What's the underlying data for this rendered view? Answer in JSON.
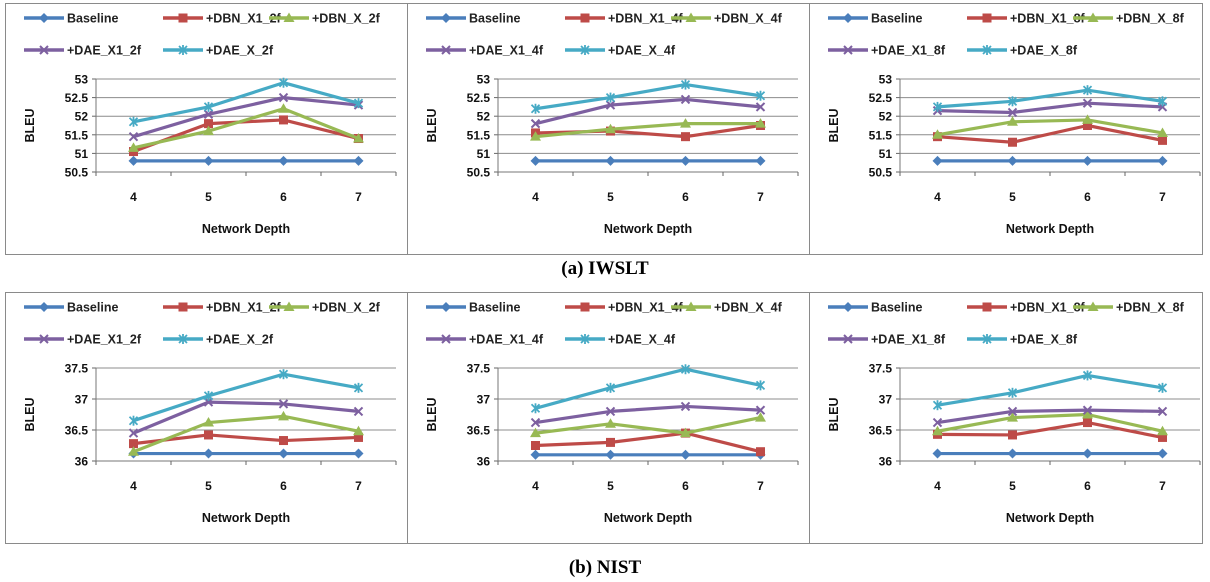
{
  "captions": [
    "(a) IWSLT",
    "(b) NIST"
  ],
  "colors": {
    "Baseline": "#4a7ebb",
    "+DBN_X1": "#be4b48",
    "+DBN_X": "#98b954",
    "+DAE_X1": "#7d60a0",
    "+DAE_X": "#46aac5"
  },
  "chart_data": [
    {
      "type": "line",
      "xlabel": "Network Depth",
      "ylabel": "BLEU",
      "categories": [
        "4",
        "5",
        "6",
        "7"
      ],
      "ylim": [
        50.5,
        53
      ],
      "yticks": [
        "50.5",
        "51",
        "51.5",
        "52",
        "52.5",
        "53"
      ],
      "series": [
        {
          "name": "Baseline",
          "values": [
            50.8,
            50.8,
            50.8,
            50.8
          ]
        },
        {
          "name": "+DBN_X1_2f",
          "values": [
            51.05,
            51.8,
            51.9,
            51.4
          ]
        },
        {
          "name": "+DBN_X_2f",
          "values": [
            51.15,
            51.6,
            52.2,
            51.4
          ]
        },
        {
          "name": "+DAE_X1_2f",
          "values": [
            51.45,
            52.05,
            52.5,
            52.3
          ]
        },
        {
          "name": "+DAE_X_2f",
          "values": [
            51.85,
            52.25,
            52.9,
            52.35
          ]
        }
      ]
    },
    {
      "type": "line",
      "xlabel": "Network Depth",
      "ylabel": "BLEU",
      "categories": [
        "4",
        "5",
        "6",
        "7"
      ],
      "ylim": [
        50.5,
        53
      ],
      "yticks": [
        "50.5",
        "51",
        "51.5",
        "52",
        "52.5",
        "53"
      ],
      "series": [
        {
          "name": "Baseline",
          "values": [
            50.8,
            50.8,
            50.8,
            50.8
          ]
        },
        {
          "name": "+DBN_X1_4f",
          "values": [
            51.55,
            51.6,
            51.45,
            51.75
          ]
        },
        {
          "name": "+DBN_X_4f",
          "values": [
            51.45,
            51.65,
            51.8,
            51.8
          ]
        },
        {
          "name": "+DAE_X1_4f",
          "values": [
            51.8,
            52.3,
            52.45,
            52.25
          ]
        },
        {
          "name": "+DAE_X_4f",
          "values": [
            52.2,
            52.5,
            52.85,
            52.55
          ]
        }
      ]
    },
    {
      "type": "line",
      "xlabel": "Network Depth",
      "ylabel": "BLEU",
      "categories": [
        "4",
        "5",
        "6",
        "7"
      ],
      "ylim": [
        50.5,
        53
      ],
      "yticks": [
        "50.5",
        "51",
        "51.5",
        "52",
        "52.5",
        "53"
      ],
      "series": [
        {
          "name": "Baseline",
          "values": [
            50.8,
            50.8,
            50.8,
            50.8
          ]
        },
        {
          "name": "+DBN_X1_8f",
          "values": [
            51.45,
            51.3,
            51.75,
            51.35
          ]
        },
        {
          "name": "+DBN_X_8f",
          "values": [
            51.5,
            51.85,
            51.9,
            51.55
          ]
        },
        {
          "name": "+DAE_X1_8f",
          "values": [
            52.15,
            52.1,
            52.35,
            52.25
          ]
        },
        {
          "name": "+DAE_X_8f",
          "values": [
            52.25,
            52.4,
            52.7,
            52.4
          ]
        }
      ]
    },
    {
      "type": "line",
      "xlabel": "Network Depth",
      "ylabel": "BLEU",
      "categories": [
        "4",
        "5",
        "6",
        "7"
      ],
      "ylim": [
        36,
        37.5
      ],
      "yticks": [
        "36",
        "36.5",
        "37",
        "37.5"
      ],
      "series": [
        {
          "name": "Baseline",
          "values": [
            36.12,
            36.12,
            36.12,
            36.12
          ]
        },
        {
          "name": "+DBN_X1_2f",
          "values": [
            36.28,
            36.42,
            36.33,
            36.38
          ]
        },
        {
          "name": "+DBN_X_2f",
          "values": [
            36.15,
            36.62,
            36.72,
            36.48
          ]
        },
        {
          "name": "+DAE_X1_2f",
          "values": [
            36.45,
            36.95,
            36.92,
            36.8
          ]
        },
        {
          "name": "+DAE_X_2f",
          "values": [
            36.65,
            37.05,
            37.4,
            37.18
          ]
        }
      ]
    },
    {
      "type": "line",
      "xlabel": "Network Depth",
      "ylabel": "BLEU",
      "categories": [
        "4",
        "5",
        "6",
        "7"
      ],
      "ylim": [
        36,
        37.5
      ],
      "yticks": [
        "36",
        "36.5",
        "37",
        "37.5"
      ],
      "series": [
        {
          "name": "Baseline",
          "values": [
            36.1,
            36.1,
            36.1,
            36.1
          ]
        },
        {
          "name": "+DBN_X1_4f",
          "values": [
            36.25,
            36.3,
            36.45,
            36.15
          ]
        },
        {
          "name": "+DBN_X_4f",
          "values": [
            36.45,
            36.6,
            36.45,
            36.7
          ]
        },
        {
          "name": "+DAE_X1_4f",
          "values": [
            36.62,
            36.8,
            36.88,
            36.82
          ]
        },
        {
          "name": "+DAE_X_4f",
          "values": [
            36.85,
            37.18,
            37.48,
            37.22
          ]
        }
      ]
    },
    {
      "type": "line",
      "xlabel": "Network Depth",
      "ylabel": "BLEU",
      "categories": [
        "4",
        "5",
        "6",
        "7"
      ],
      "ylim": [
        36,
        37.5
      ],
      "yticks": [
        "36",
        "36.5",
        "37",
        "37.5"
      ],
      "series": [
        {
          "name": "Baseline",
          "values": [
            36.12,
            36.12,
            36.12,
            36.12
          ]
        },
        {
          "name": "+DBN_X1_8f",
          "values": [
            36.43,
            36.42,
            36.62,
            36.38
          ]
        },
        {
          "name": "+DBN_X_8f",
          "values": [
            36.48,
            36.7,
            36.75,
            36.48
          ]
        },
        {
          "name": "+DAE_X1_8f",
          "values": [
            36.62,
            36.8,
            36.82,
            36.8
          ]
        },
        {
          "name": "+DAE_X_8f",
          "values": [
            36.9,
            37.1,
            37.38,
            37.18
          ]
        }
      ]
    }
  ]
}
